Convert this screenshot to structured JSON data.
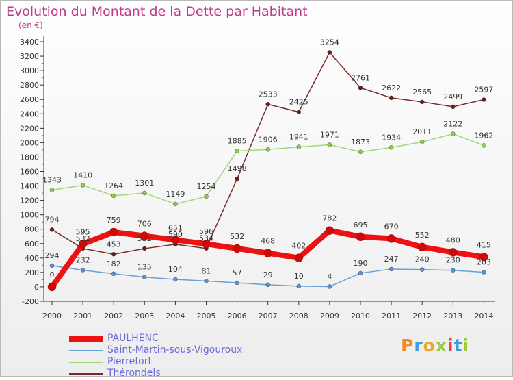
{
  "title": "Evolution du Montant de la Dette par Habitant",
  "unit_label": "(en €)",
  "logo": {
    "letters": [
      {
        "ch": "P",
        "color": "#f08c1e"
      },
      {
        "ch": "r",
        "color": "#3a9be0"
      },
      {
        "ch": "o",
        "color": "#f2a320"
      },
      {
        "ch": "x",
        "color": "#9acb3c"
      },
      {
        "ch": "i",
        "color": "#e0463a"
      },
      {
        "ch": "t",
        "color": "#3a9be0"
      },
      {
        "ch": "i",
        "color": "#9acb3c"
      }
    ]
  },
  "chart_data": {
    "type": "line",
    "title": "Evolution du Montant de la Dette par Habitant",
    "unit": "(en €)",
    "x": [
      "2000",
      "2001",
      "2002",
      "2003",
      "2004",
      "2005",
      "2006",
      "2007",
      "2008",
      "2009",
      "2010",
      "2011",
      "2012",
      "2013",
      "2014"
    ],
    "yticks": [
      -200,
      0,
      200,
      400,
      600,
      800,
      1000,
      1200,
      1400,
      1600,
      1800,
      2000,
      2200,
      2400,
      2600,
      2800,
      3000,
      3200,
      3400
    ],
    "ylim": [
      -200,
      3400
    ],
    "grid": false,
    "legend_position": "bottom-left",
    "series": [
      {
        "name": "PAULHENC",
        "color": "#ee1111",
        "marker": "#cc0a0a",
        "width": 8,
        "values": [
          0,
          595,
          759,
          706,
          651,
          596,
          532,
          468,
          402,
          782,
          695,
          670,
          552,
          480,
          415
        ]
      },
      {
        "name": "Saint-Martin-sous-Vigouroux",
        "color": "#6aa0d8",
        "marker": "#5b8fd6",
        "width": 1.5,
        "values": [
          294,
          232,
          182,
          135,
          104,
          81,
          57,
          29,
          10,
          4,
          190,
          247,
          240,
          230,
          203
        ]
      },
      {
        "name": "Pierrefort",
        "color": "#9fd87a",
        "marker": "#8ccc52",
        "width": 1.5,
        "values": [
          1343,
          1410,
          1264,
          1301,
          1149,
          1254,
          1885,
          1906,
          1941,
          1971,
          1873,
          1934,
          2011,
          2122,
          1962
        ]
      },
      {
        "name": "Thérondels",
        "color": "#7a2a2a",
        "marker": "#6a1c1c",
        "width": 1.5,
        "values": [
          794,
          532,
          453,
          532,
          590,
          534,
          1498,
          2533,
          2425,
          3254,
          2761,
          2622,
          2565,
          2499,
          2597
        ]
      }
    ]
  }
}
